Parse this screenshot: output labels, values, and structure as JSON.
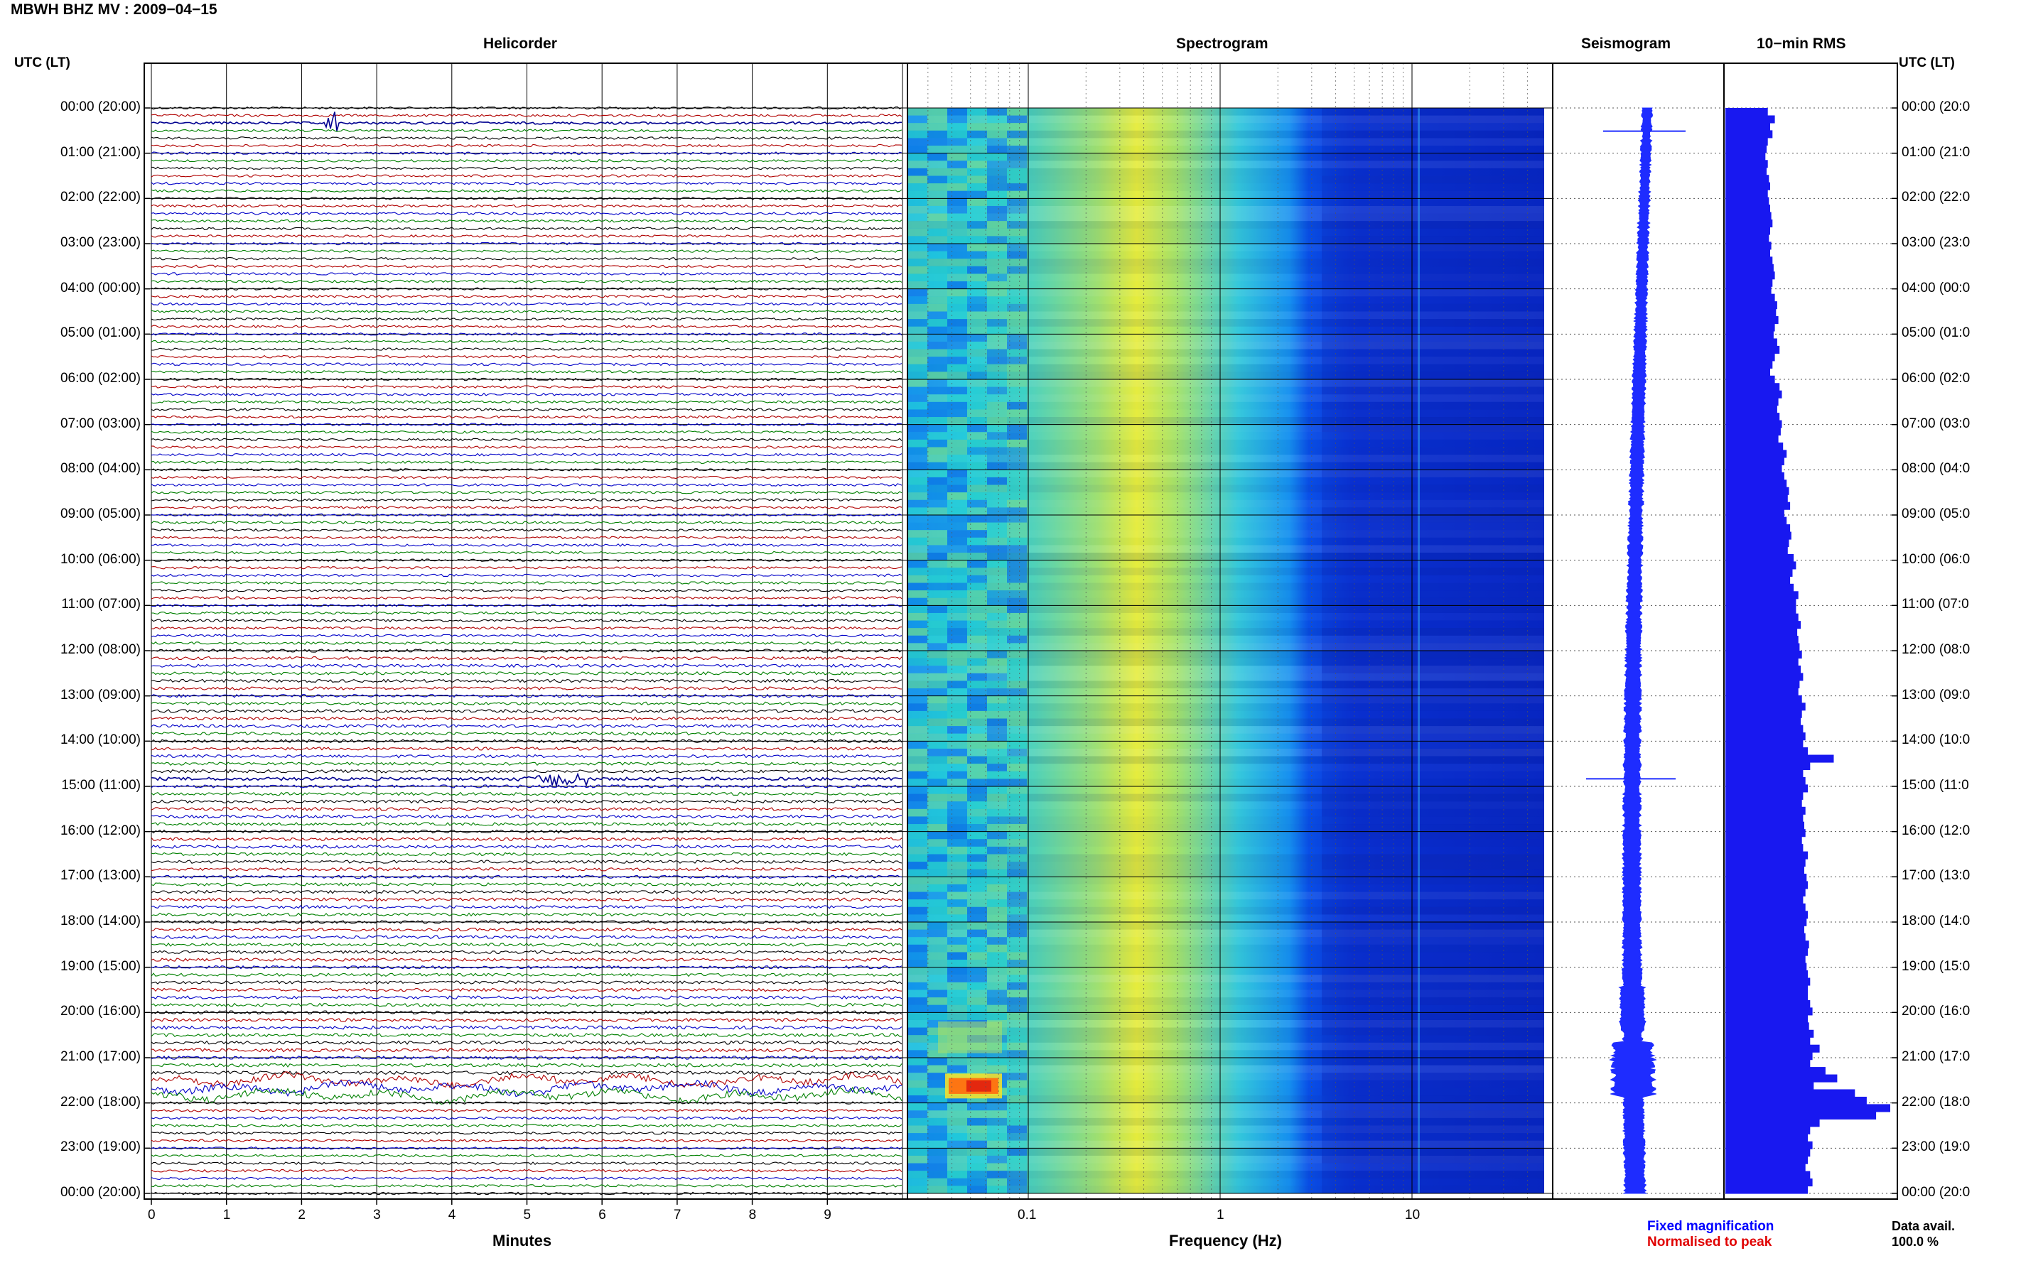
{
  "header": {
    "title": "MBWH BHZ MV : 2009−04−15",
    "utc_left": "UTC (LT)",
    "utc_right": "UTC (LT)"
  },
  "panels": {
    "helicorder": "Helicorder",
    "spectrogram": "Spectrogram",
    "seismogram": "Seismogram",
    "rms": "10−min RMS"
  },
  "time_labels_left": [
    "00:00 (20:00)",
    "01:00 (21:00)",
    "02:00 (22:00)",
    "03:00 (23:00)",
    "04:00 (00:00)",
    "05:00 (01:00)",
    "06:00 (02:00)",
    "07:00 (03:00)",
    "08:00 (04:00)",
    "09:00 (05:00)",
    "10:00 (06:00)",
    "11:00 (07:00)",
    "12:00 (08:00)",
    "13:00 (09:00)",
    "14:00 (10:00)",
    "15:00 (11:00)",
    "16:00 (12:00)",
    "17:00 (13:00)",
    "18:00 (14:00)",
    "19:00 (15:00)",
    "20:00 (16:00)",
    "21:00 (17:00)",
    "22:00 (18:00)",
    "23:00 (19:00)",
    "00:00 (20:00)"
  ],
  "time_labels_right": [
    "00:00 (20:0",
    "01:00 (21:0",
    "02:00 (22:0",
    "03:00 (23:0",
    "04:00 (00:0",
    "05:00 (01:0",
    "06:00 (02:0",
    "07:00 (03:0",
    "08:00 (04:0",
    "09:00 (05:0",
    "10:00 (06:0",
    "11:00 (07:0",
    "12:00 (08:0",
    "13:00 (09:0",
    "14:00 (10:0",
    "15:00 (11:0",
    "16:00 (12:0",
    "17:00 (13:0",
    "18:00 (14:0",
    "19:00 (15:0",
    "20:00 (16:0",
    "21:00 (17:0",
    "22:00 (18:0",
    "23:00 (19:0",
    "00:00 (20:0"
  ],
  "footer": {
    "minutes_label": "Minutes",
    "frequency_label": "Frequency (Hz)",
    "fixed_magnification": "Fixed magnification",
    "normalised_to_peak": "Normalised to peak",
    "data_avail": "Data avail.",
    "data_avail_value": "100.0 %"
  },
  "colors": {
    "trace_cycle": [
      "#000000",
      "#b00000",
      "#0000c8",
      "#008000"
    ],
    "seismogram": "#1e2cff",
    "rms_bar": "#1818f0",
    "fixed_magnification": "#0000ff",
    "normalised_to_peak": "#e00000"
  },
  "chart_data": [
    {
      "type": "line",
      "name": "helicorder",
      "title": "Helicorder",
      "xlabel": "Minutes",
      "x_ticks": [
        "0",
        "1",
        "2",
        "3",
        "4",
        "5",
        "6",
        "7",
        "8",
        "9"
      ],
      "xlim": [
        0,
        10
      ],
      "rows_per_hour": 6,
      "hours": 24,
      "events": [
        {
          "time": "00:20",
          "minute": 2.4,
          "note": "small spike"
        },
        {
          "time": "14:50",
          "minute": 5.5,
          "note": "event burst"
        },
        {
          "time": "21:30",
          "minute": 0.0,
          "note": "long-period noise through 21:40"
        }
      ]
    },
    {
      "type": "heatmap",
      "name": "spectrogram",
      "title": "Spectrogram",
      "xlabel": "Frequency (Hz)",
      "x_scale": "log",
      "x_ticks": [
        "0.1",
        "1",
        "10"
      ],
      "xlim": [
        0.02,
        50
      ],
      "peak_frequency_hz": 0.4,
      "high_energy_rows": [
        "21:20",
        "21:30",
        "21:40"
      ],
      "colormap": "jet"
    },
    {
      "type": "line",
      "name": "seismogram",
      "title": "Seismogram",
      "spikes": [
        "00:20",
        "14:50"
      ]
    },
    {
      "type": "bar",
      "name": "rms",
      "title": "10−min RMS",
      "orientation": "horizontal",
      "interval_minutes": 10,
      "values": [
        36,
        42,
        38,
        40,
        36,
        35,
        34,
        36,
        35,
        37,
        38,
        36,
        37,
        38,
        39,
        40,
        38,
        37,
        39,
        38,
        40,
        41,
        42,
        40,
        39,
        42,
        44,
        43,
        45,
        42,
        41,
        44,
        46,
        42,
        40,
        38,
        42,
        46,
        48,
        45,
        44,
        46,
        48,
        47,
        45,
        49,
        52,
        50,
        48,
        50,
        52,
        54,
        53,
        55,
        50,
        52,
        55,
        56,
        54,
        53,
        58,
        60,
        57,
        55,
        58,
        62,
        60,
        60,
        62,
        64,
        61,
        62,
        63,
        65,
        62,
        64,
        66,
        63,
        62,
        65,
        68,
        65,
        64,
        66,
        68,
        66,
        70,
        92,
        72,
        66,
        68,
        70,
        66,
        65,
        68,
        66,
        67,
        68,
        65,
        66,
        70,
        68,
        67,
        69,
        70,
        68,
        66,
        68,
        70,
        69,
        67,
        68,
        71,
        70,
        68,
        69,
        70,
        72,
        70,
        70,
        72,
        74,
        70,
        71,
        75,
        72,
        80,
        74,
        72,
        85,
        95,
        75,
        110,
        120,
        140,
        128,
        80,
        72,
        70,
        74,
        72,
        70,
        68,
        72,
        74,
        70
      ],
      "max": 140
    }
  ]
}
